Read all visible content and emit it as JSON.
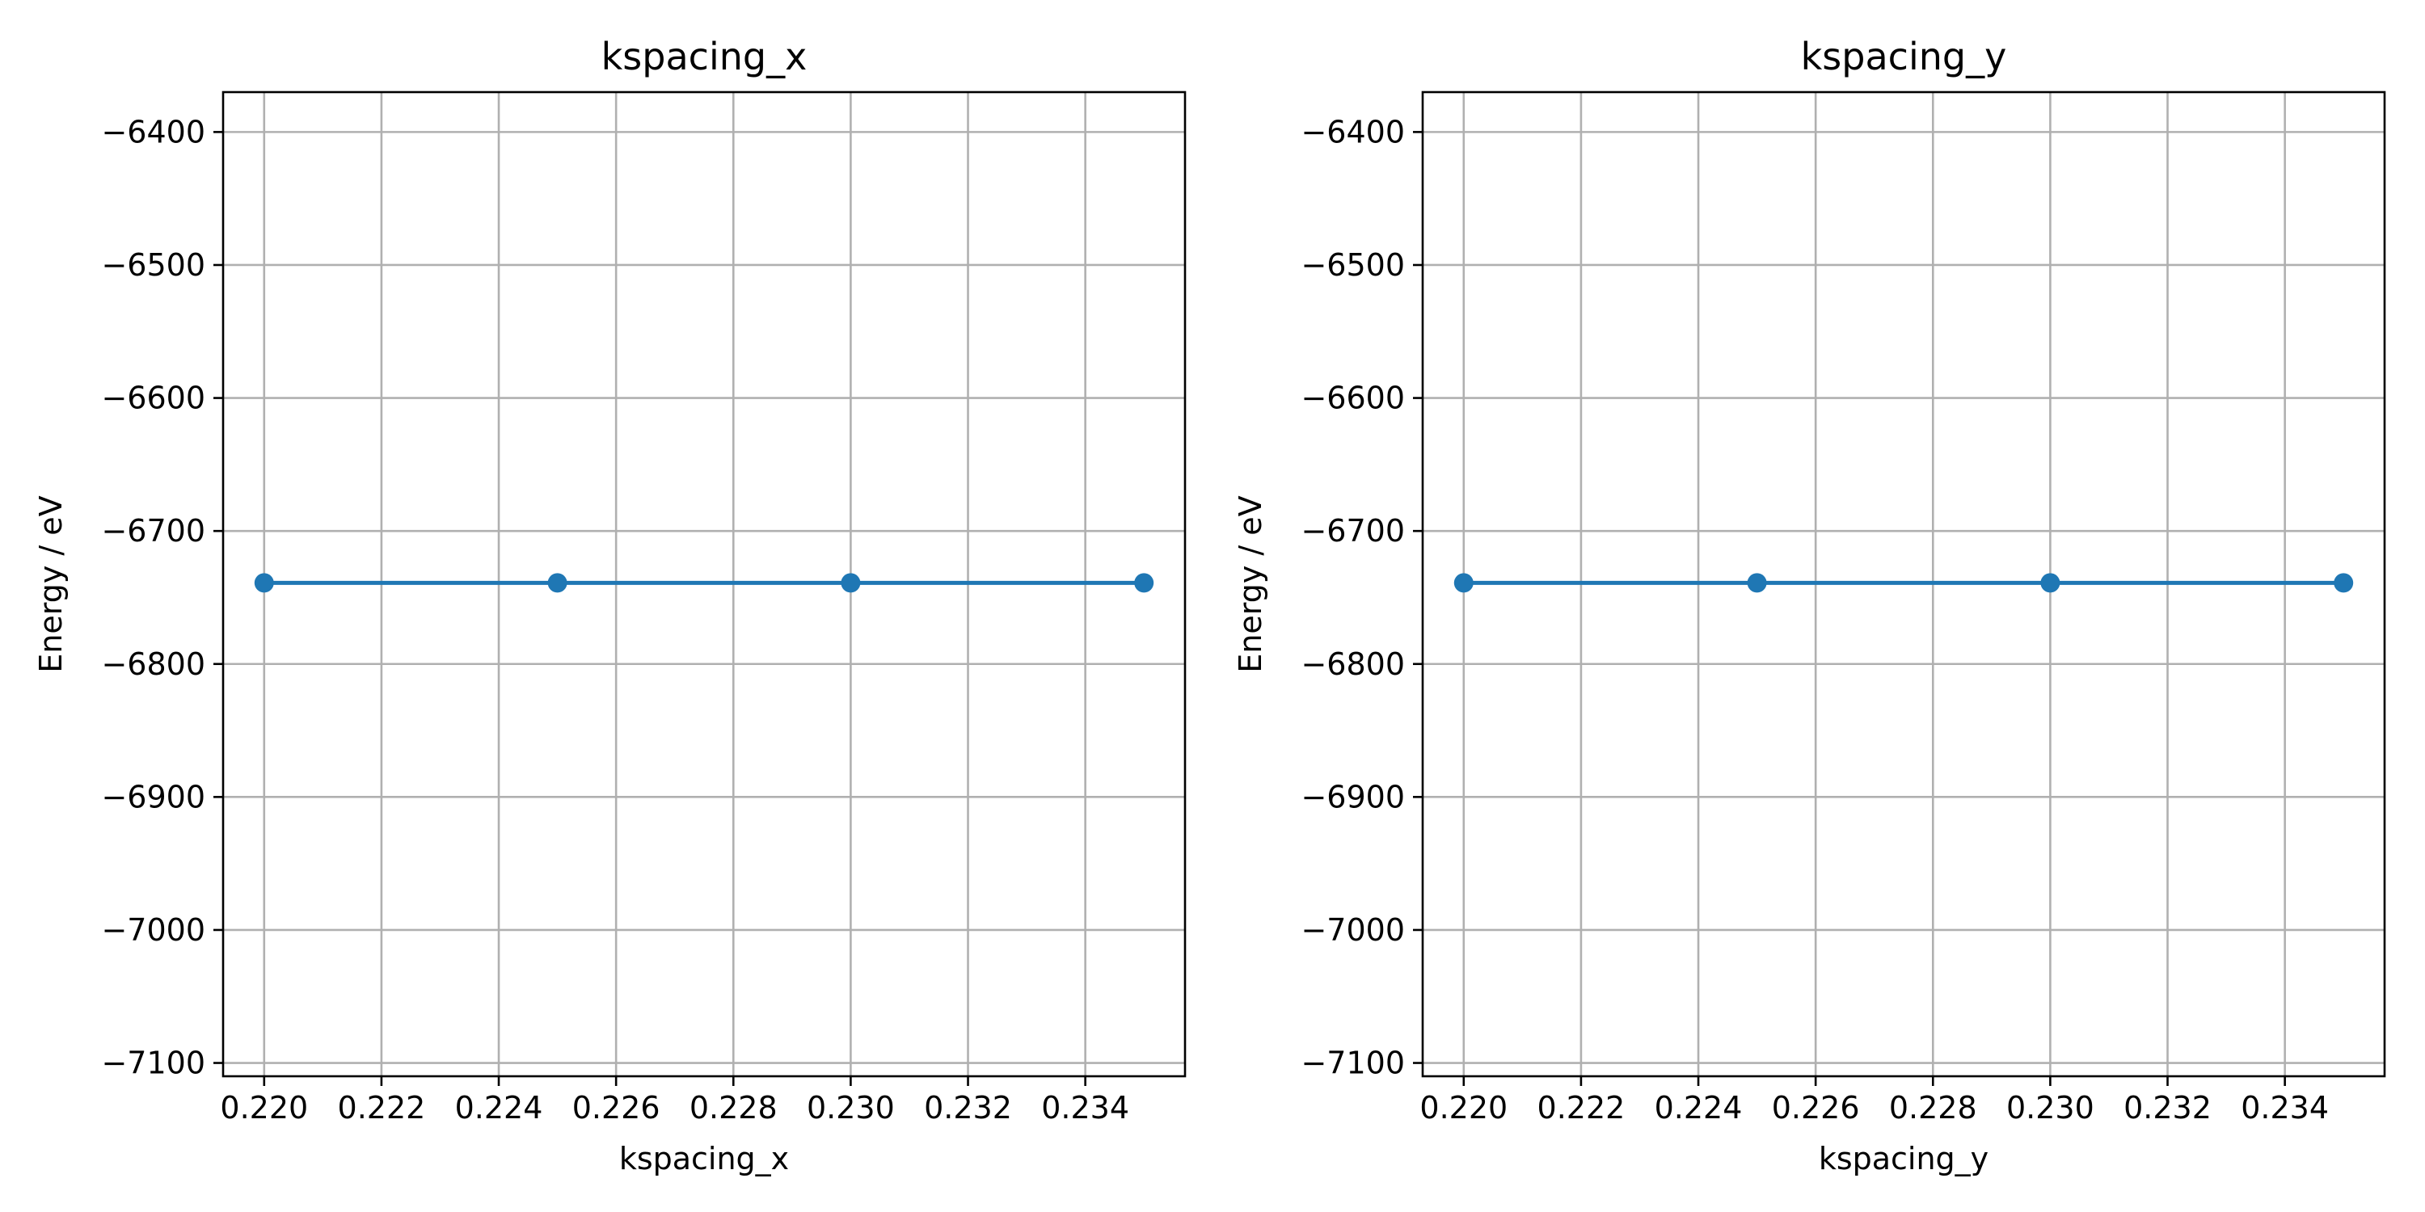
{
  "colors": {
    "series": "#1f77b4",
    "grid": "#b0b0b0",
    "axes": "#000000",
    "background": "#ffffff"
  },
  "chart_data": [
    {
      "type": "line",
      "title": "kspacing_x",
      "xlabel": "kspacing_x",
      "ylabel": "Energy / eV",
      "xlim": [
        0.2193,
        0.2357
      ],
      "ylim": [
        -7110,
        -6370
      ],
      "xticks": [
        0.22,
        0.222,
        0.224,
        0.226,
        0.228,
        0.23,
        0.232,
        0.234
      ],
      "xtick_labels": [
        "0.220",
        "0.222",
        "0.224",
        "0.226",
        "0.228",
        "0.230",
        "0.232",
        "0.234"
      ],
      "yticks": [
        -6400,
        -6500,
        -6600,
        -6700,
        -6800,
        -6900,
        -7000,
        -7100
      ],
      "ytick_labels": [
        "−6400",
        "−6500",
        "−6600",
        "−6700",
        "−6800",
        "−6900",
        "−7000",
        "−7100"
      ],
      "grid": true,
      "marker": "circle",
      "series": [
        {
          "x": [
            0.22,
            0.225,
            0.23,
            0.235
          ],
          "values": [
            -6739,
            -6739,
            -6739,
            -6739
          ]
        }
      ]
    },
    {
      "type": "line",
      "title": "kspacing_y",
      "xlabel": "kspacing_y",
      "ylabel": "Energy / eV",
      "xlim": [
        0.2193,
        0.2357
      ],
      "ylim": [
        -7110,
        -6370
      ],
      "xticks": [
        0.22,
        0.222,
        0.224,
        0.226,
        0.228,
        0.23,
        0.232,
        0.234
      ],
      "xtick_labels": [
        "0.220",
        "0.222",
        "0.224",
        "0.226",
        "0.228",
        "0.230",
        "0.232",
        "0.234"
      ],
      "yticks": [
        -6400,
        -6500,
        -6600,
        -6700,
        -6800,
        -6900,
        -7000,
        -7100
      ],
      "ytick_labels": [
        "−6400",
        "−6500",
        "−6600",
        "−6700",
        "−6800",
        "−6900",
        "−7000",
        "−7100"
      ],
      "grid": true,
      "marker": "circle",
      "series": [
        {
          "x": [
            0.22,
            0.225,
            0.23,
            0.235
          ],
          "values": [
            -6739,
            -6739,
            -6739,
            -6739
          ]
        }
      ]
    }
  ]
}
